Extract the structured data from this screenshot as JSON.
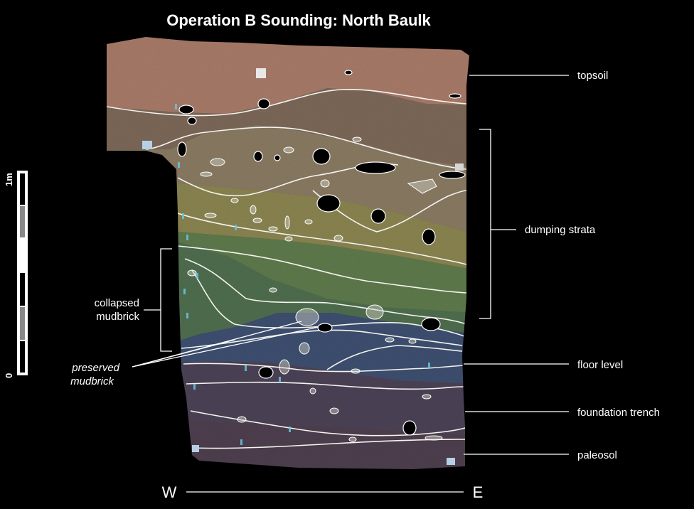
{
  "title": "Operation B Sounding: North Baulk",
  "labels": {
    "topsoil": "topsoil",
    "dumping_strata": "dumping strata",
    "collapsed_mudbrick_1": "collapsed",
    "collapsed_mudbrick_2": "mudbrick",
    "preserved_mudbrick_1": "preserved",
    "preserved_mudbrick_2": "mudbrick",
    "floor_level": "floor level",
    "foundation_trench": "foundation trench",
    "paleosol": "paleosol"
  },
  "directions": {
    "west": "W",
    "east": "E"
  },
  "scale": {
    "top_label": "1m",
    "bottom_label": "0"
  },
  "colors": {
    "background": "#000000",
    "topsoil": "#a87a68",
    "dumping_strata": "#8a7a5a",
    "collapsed_mudbrick": "#5e7a4c",
    "floor_level": "#3e4f70",
    "foundation_trench": "#4c4256",
    "paleosol": "#4e3f4e",
    "label_tags": "#68c3dd"
  }
}
